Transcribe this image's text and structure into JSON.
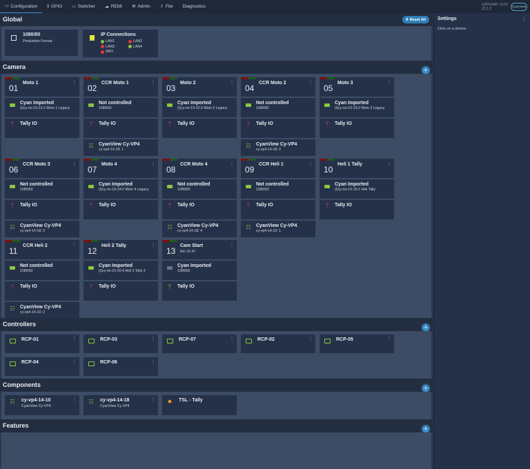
{
  "nav": {
    "items": [
      {
        "label": "Configuration",
        "icon": "camera-icon",
        "active": true
      },
      {
        "label": "GPIO",
        "icon": "bars-icon"
      },
      {
        "label": "Switcher",
        "icon": "switcher-icon"
      },
      {
        "label": "REMI",
        "icon": "cloud-icon"
      },
      {
        "label": "Admin",
        "icon": "wrench-icon"
      },
      {
        "label": "File",
        "icon": "upload-icon"
      },
      {
        "label": "Diagnostics",
        "icon": ""
      }
    ],
    "gateway": "GATEWAY 19.00",
    "version": "22.1.3",
    "logo": "CyanView"
  },
  "global": {
    "title": "Global",
    "reset_label": "Reset All",
    "format": {
      "value": "1080i50",
      "label": "Production Format"
    },
    "ip": {
      "title": "IP Connections",
      "links": [
        {
          "name": "LAN1",
          "status": "#8cc63f"
        },
        {
          "name": "LAN2",
          "status": "#e53935"
        },
        {
          "name": "LAN3",
          "status": "#e53935"
        },
        {
          "name": "LAN4",
          "status": "#8cc63f"
        },
        {
          "name": "WIFI",
          "status": "#e53935"
        }
      ]
    }
  },
  "camera": {
    "title": "Camera",
    "cards": [
      {
        "num": "01",
        "name": "Moto 1",
        "source": {
          "title": "Cyan Imported",
          "detail": "(I)cy-rio-15-21:2 Moto 1 Legacy"
        },
        "tally": "Tally IO"
      },
      {
        "num": "02",
        "name": "CCR Moto 1",
        "source": {
          "title": "Not controlled",
          "detail": "1080i50"
        },
        "tally": "Tally IO",
        "vp": {
          "title": "CyanView Cy-VP4",
          "detail": "cy-vp4-14-18: 1"
        }
      },
      {
        "num": "03",
        "name": "Moto 2",
        "source": {
          "title": "Cyan Imported",
          "detail": "(I)cy-rio-15-22:2 Moto 2 Legacy"
        },
        "tally": "Tally IO"
      },
      {
        "num": "04",
        "name": "CCR Moto 2",
        "source": {
          "title": "Not controlled",
          "detail": "1080i50"
        },
        "tally": "Tally IO",
        "vp": {
          "title": "CyanView Cy-VP4",
          "detail": "cy-vp4-14-18: 2"
        }
      },
      {
        "num": "05",
        "name": "Moto 3",
        "source": {
          "title": "Cyan Imported",
          "detail": "(I)cy-rio-15-23:2 Moto 3 Legacy"
        },
        "tally": "Tally IO"
      },
      {
        "num": "06",
        "name": "CCR Moto 3",
        "source": {
          "title": "Not controlled",
          "detail": "1080i50"
        },
        "tally": "Tally IO",
        "vp": {
          "title": "CyanView Cy-VP4",
          "detail": "cy-vp4-14-18: 3"
        }
      },
      {
        "num": "07",
        "name": "Moto 4",
        "source": {
          "title": "Cyan Imported",
          "detail": "(I)cy-rio-15-24:2 Moto 4 Legacy"
        },
        "tally": "Tally IO"
      },
      {
        "num": "08",
        "name": "CCR Moto 4",
        "source": {
          "title": "Not controlled",
          "detail": "1080i50"
        },
        "tally": "Tally IO",
        "vp": {
          "title": "CyanView Cy-VP4",
          "detail": "cy-vp4-14-18: 4"
        }
      },
      {
        "num": "09",
        "name": "CCR Heli 1",
        "source": {
          "title": "Not controlled",
          "detail": "1080i50"
        },
        "tally": "Tally IO",
        "vp": {
          "title": "CyanView Cy-VP4",
          "detail": "cy-vp4-14-10: 1"
        }
      },
      {
        "num": "10",
        "name": "Heli 1 Tally",
        "source": {
          "title": "Cyan Imported",
          "detail": "(I)cy-rio-15-19:1 Heli Tally"
        },
        "tally": "Tally IO"
      },
      {
        "num": "11",
        "name": "CCR Heli 2",
        "source": {
          "title": "Not controlled",
          "detail": "1080i50"
        },
        "tally": "Tally IO",
        "vp": {
          "title": "CyanView Cy-VP4",
          "detail": "cy-vp4-14-10: 2"
        }
      },
      {
        "num": "12",
        "name": "Heli 2 Tally",
        "source": {
          "title": "Cyan Imported",
          "detail": "(I)cy-rio-15-20:4 Heli 2 Tally 2"
        },
        "tally": "Tally IO"
      },
      {
        "num": "13",
        "name": "Cam Start",
        "subtitle": "Rio 15-47",
        "source": {
          "title": "Cyan Imported",
          "detail": "1080i50",
          "inactive": true
        },
        "tally": "Tally IO",
        "tally_color": "#8cc63f"
      }
    ]
  },
  "controllers": {
    "title": "Controllers",
    "items": [
      "RCP-01",
      "RCP-03",
      "RCP-07",
      "RCP-02",
      "RCP-05",
      "RCP-04",
      "RCP-06"
    ]
  },
  "components": {
    "title": "Components",
    "items": [
      {
        "name": "cy-vp4-14-10",
        "type": "CyanView Cy-VP4",
        "icon": "sliders-icon"
      },
      {
        "name": "cy-vp4-14-18",
        "type": "CyanView Cy-VP4",
        "icon": "sliders-icon"
      },
      {
        "name": "TSL - Tally",
        "type": "",
        "icon": "bulb-icon"
      }
    ]
  },
  "features": {
    "title": "Features"
  },
  "settings": {
    "title": "Settings",
    "hint": "Click on a device"
  },
  "colors": {
    "accent": "#3a8fcf",
    "ok": "#8cc63f",
    "tally": "#e0445a"
  }
}
